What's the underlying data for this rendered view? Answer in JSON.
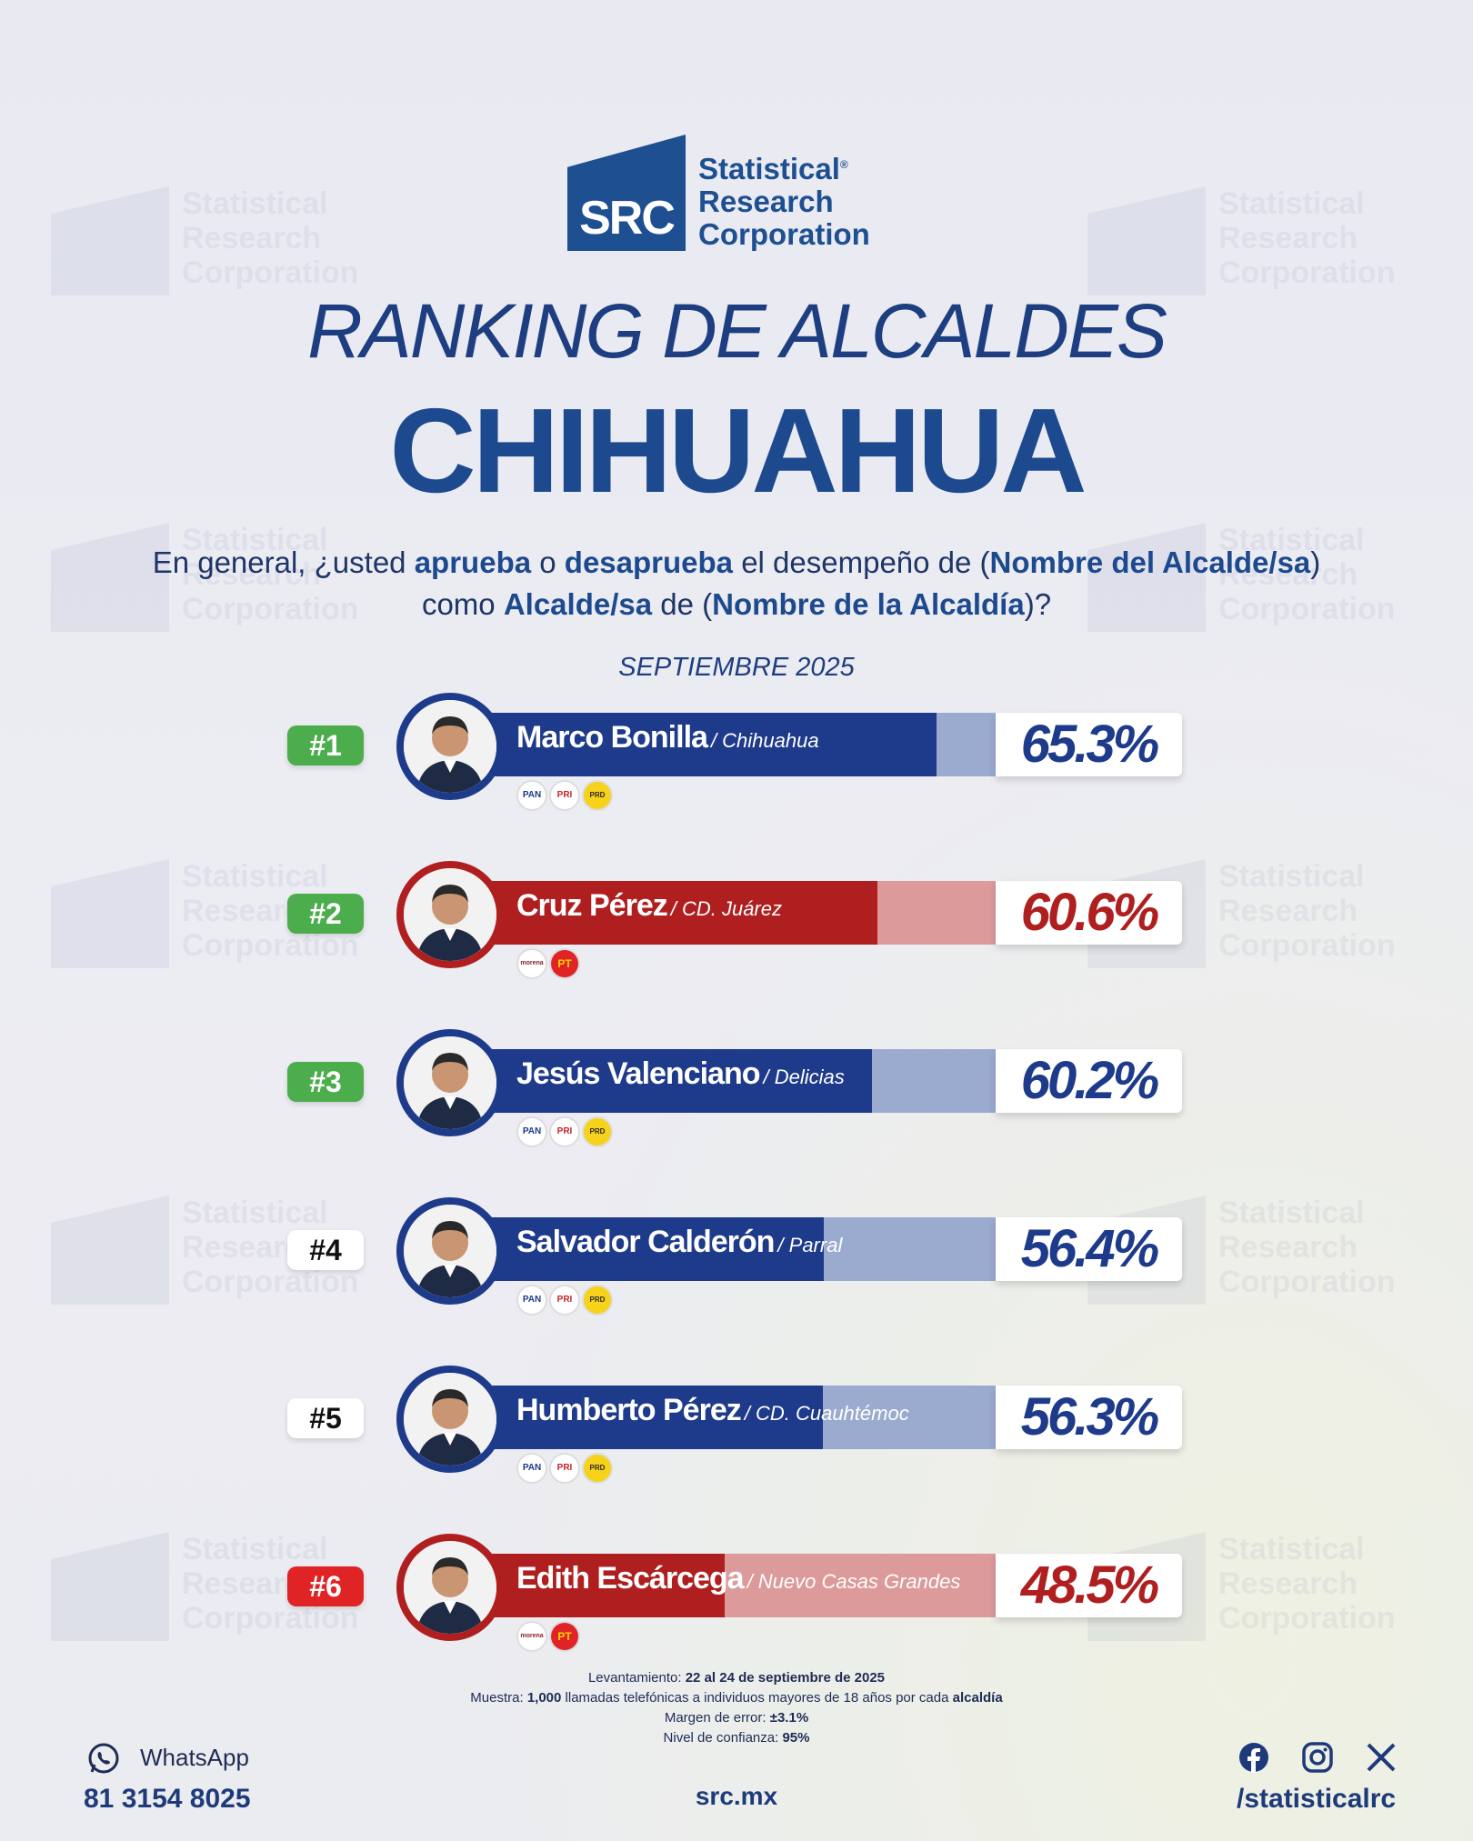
{
  "brand": {
    "mark": "SRC",
    "line1": "Statistical",
    "line2": "Research",
    "line3": "Corporation",
    "reg": "®"
  },
  "title": "RANKING DE ALCALDES",
  "state": "CHIHUAHUA",
  "question": {
    "p1": "En general, ¿usted ",
    "b1": "aprueba",
    "p2": " o ",
    "b2": "desaprueba",
    "p3": " el desempeño de (",
    "b3": "Nombre del Alcalde/sa",
    "p4": ") como ",
    "b4": "Alcalde/sa",
    "p5": " de (",
    "b5": "Nombre de la Alcaldía",
    "p6": ")?"
  },
  "date": "SEPTIEMBRE 2025",
  "colors": {
    "blue": "#1e3a8a",
    "blue_light": "#9aabcf",
    "red": "#b01f1f",
    "red_light": "#dc9a9a",
    "green": "#4cad4c"
  },
  "chart_data": {
    "type": "bar",
    "categories": [
      "Marco Bonilla",
      "Cruz Pérez",
      "Jesús Valenciano",
      "Salvador Calderón",
      "Humberto Pérez",
      "Edith Escárcega"
    ],
    "values": [
      65.3,
      60.6,
      60.2,
      56.4,
      56.3,
      48.5
    ],
    "ylim": [
      0,
      100
    ],
    "rows": [
      {
        "rank": "#1",
        "rank_style": "green",
        "name": "Marco Bonilla",
        "city": "/ Chihuahua",
        "value": 65.3,
        "label": "65.3%",
        "bloc": "blue",
        "parties": [
          "PAN",
          "PRI",
          "PRD"
        ]
      },
      {
        "rank": "#2",
        "rank_style": "green",
        "name": "Cruz Pérez",
        "city": "/ CD. Juárez",
        "value": 60.6,
        "label": "60.6%",
        "bloc": "red",
        "parties": [
          "morena",
          "PT"
        ]
      },
      {
        "rank": "#3",
        "rank_style": "green",
        "name": "Jesús Valenciano",
        "city": "/ Delicias",
        "value": 60.2,
        "label": "60.2%",
        "bloc": "blue",
        "parties": [
          "PAN",
          "PRI",
          "PRD"
        ]
      },
      {
        "rank": "#4",
        "rank_style": "white",
        "name": "Salvador Calderón",
        "city": "/ Parral",
        "value": 56.4,
        "label": "56.4%",
        "bloc": "blue",
        "parties": [
          "PAN",
          "PRI",
          "PRD"
        ]
      },
      {
        "rank": "#5",
        "rank_style": "white",
        "name": "Humberto Pérez",
        "city": "/ CD. Cuauhtémoc",
        "value": 56.3,
        "label": "56.3%",
        "bloc": "blue",
        "parties": [
          "PAN",
          "PRI",
          "PRD"
        ]
      },
      {
        "rank": "#6",
        "rank_style": "red",
        "name": "Edith Escárcega",
        "city": "/ Nuevo Casas Grandes",
        "value": 48.5,
        "label": "48.5%",
        "bloc": "red",
        "parties": [
          "morena",
          "PT"
        ]
      }
    ]
  },
  "notes": {
    "l1_label": "Levantamiento: ",
    "l1_value": "22 al 24 de septiembre de 2025",
    "l2_label": "Muestra: ",
    "l2_value": "1,000",
    "l2_mid": " llamadas telefónicas a individuos mayores de 18 años por cada ",
    "l2_end": "alcaldía",
    "l3_label": "Margen de error: ",
    "l3_value": "±3.1%",
    "l4_label": "Nivel de confianza: ",
    "l4_value": "95%"
  },
  "contact": {
    "whatsapp_label": "WhatsApp",
    "whatsapp_number": "81 3154 8025",
    "site": "src.mx",
    "handle": "/statisticalrc",
    "icons": [
      "facebook-icon",
      "instagram-icon",
      "x-icon"
    ]
  }
}
